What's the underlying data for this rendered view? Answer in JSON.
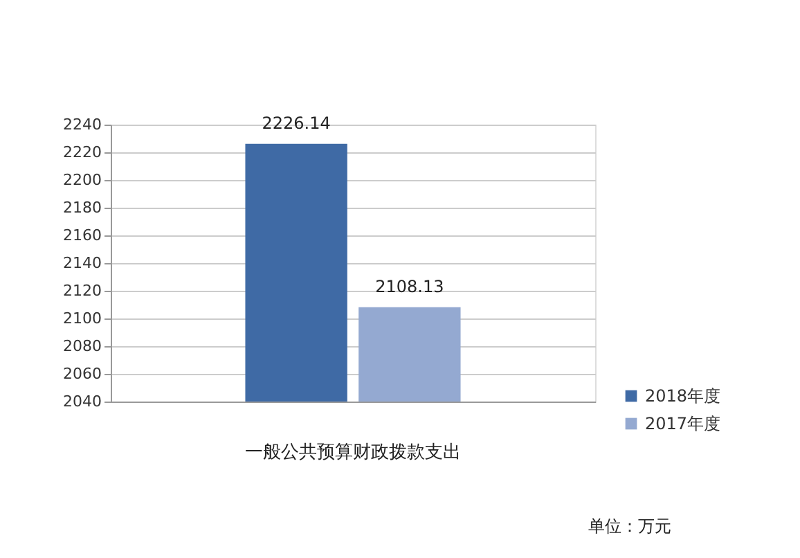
{
  "chart_data": {
    "type": "bar",
    "categories": [
      "一般公共预算财政拨款支出"
    ],
    "series": [
      {
        "name": "2018年度",
        "color": "#3f6aa5",
        "values": [
          2226.14
        ]
      },
      {
        "name": "2017年度",
        "color": "#94a9d1",
        "values": [
          2108.13
        ]
      }
    ],
    "ylim": [
      2040,
      2240
    ],
    "yticks": [
      2040,
      2060,
      2080,
      2100,
      2120,
      2140,
      2160,
      2180,
      2200,
      2220,
      2240
    ],
    "grid": "y",
    "legend": "right",
    "data_labels": true,
    "annotations": [
      "单位：万元"
    ]
  }
}
